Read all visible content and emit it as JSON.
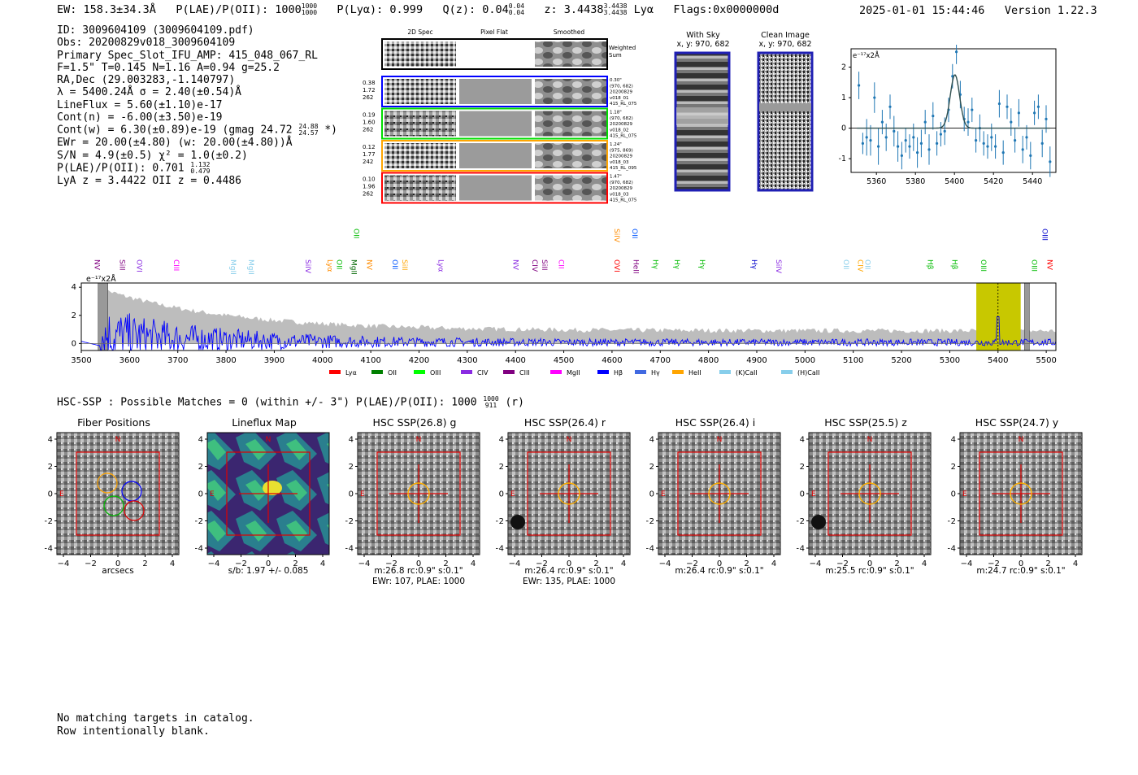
{
  "header": {
    "ew": "EW: 158.3±34.3Å",
    "plae_label": "P(LAE)/P(OII): 1000",
    "plae_hi": "1000",
    "plae_lo": "1000",
    "plya": "P(Lyα): 0.999",
    "qz_label": "Q(z): 0.04",
    "qz_hi": "0.04",
    "qz_lo": "0.04",
    "z_label": "z: 3.4438",
    "z_hi": "3.4438",
    "z_lo": "3.4438",
    "z_line": "Lyα",
    "flags": "Flags:0x0000000d",
    "timestamp": "2025-01-01 15:44:46",
    "version": "Version 1.22.3"
  },
  "info": {
    "id": "ID: 3009604109 (3009604109.pdf)",
    "obs": "Obs: 20200829v018_3009604109",
    "primary": "Primary Spec_Slot_IFU_AMP: 415_048_067_RL",
    "fparams": "F=1.5\"  T=0.145  N=1.16  A=0.94  g=25.2",
    "radec": "RA,Dec (29.003283,-1.140797)",
    "lambda": "λ = 5400.24Å  σ = 2.40(±0.54)Å",
    "lineflux": "LineFlux = 5.60(±1.10)e-17",
    "contn": "Cont(n) = -6.00(±3.50)e-19",
    "contw": "Cont(w) = 6.30(±0.89)e-19 (gmag 24.72",
    "contw_hi": "24.88",
    "contw_lo": "24.57",
    "contw_end": "*)",
    "ewr": "EWr = 20.00(±4.80) (w: 20.00(±4.80))Å",
    "sn": "S/N = 4.9(±0.5)  χ² = 1.0(±0.2)",
    "plae": "P(LAE)/P(OII): 0.701",
    "plae_hi": "1.132",
    "plae_lo": "0.479",
    "lyaz": "LyA z = 3.4422  OII z = 0.4486"
  },
  "cutouts": {
    "col_titles": [
      "2D Spec",
      "Pixel Flat",
      "Smoothed"
    ],
    "weighted_sum": [
      "Weighted",
      "Sum"
    ],
    "rows": [
      {
        "left": [
          "0.38",
          "1.72",
          "262"
        ],
        "right": [
          "0.30\"",
          "(970, 682)",
          "20200829",
          "v018_01",
          "415_RL_075"
        ],
        "color": "#0000ff"
      },
      {
        "left": [
          "0.19",
          "1.60",
          "262"
        ],
        "right": [
          "1.18\"",
          "(970, 682)",
          "20200829",
          "v018_02",
          "415_RL_075"
        ],
        "color": "#00dd00"
      },
      {
        "left": [
          "0.12",
          "1.77",
          "242"
        ],
        "right": [
          "1.24\"",
          "(975, 869)",
          "20200829",
          "v018_03",
          "415_RL_095"
        ],
        "color": "#ffa500"
      },
      {
        "left": [
          "0.10",
          "1.96",
          "262"
        ],
        "right": [
          "1.47\"",
          "(970, 682)",
          "20200829",
          "v018_03",
          "415_RL_075"
        ],
        "color": "#ff0000"
      }
    ]
  },
  "sky_panels": [
    {
      "title": "With Sky",
      "subtitle": "x, y: 970, 682"
    },
    {
      "title": "Clean Image",
      "subtitle": "x, y: 970, 682"
    }
  ],
  "zoom_plot": {
    "unit_label": "e⁻¹⁷x2Å",
    "xticks": [
      "5360",
      "5380",
      "5400",
      "5420",
      "5440"
    ],
    "yticks": [
      "2",
      "1",
      "0",
      "-1"
    ],
    "xlim": [
      5347,
      5452
    ],
    "ylim": [
      -1.45,
      2.6
    ],
    "x": [
      5351,
      5353,
      5355,
      5357,
      5359,
      5361,
      5363,
      5365,
      5367,
      5369,
      5371,
      5373,
      5375,
      5377,
      5379,
      5381,
      5383,
      5385,
      5387,
      5389,
      5391,
      5393,
      5395,
      5397,
      5399,
      5401,
      5403,
      5405,
      5407,
      5409,
      5411,
      5413,
      5415,
      5417,
      5419,
      5421,
      5423,
      5425,
      5427,
      5429,
      5431,
      5433,
      5435,
      5437,
      5439,
      5441,
      5443,
      5445,
      5447,
      5449
    ],
    "y": [
      1.4,
      -0.5,
      -0.3,
      -0.4,
      1.0,
      -0.6,
      0.2,
      -0.3,
      0.7,
      -0.1,
      -0.6,
      -0.9,
      -0.4,
      -0.6,
      -0.3,
      -0.8,
      -0.5,
      0.2,
      -0.7,
      0.4,
      -0.5,
      -0.2,
      -0.1,
      0.6,
      1.7,
      2.5,
      1.1,
      0.3,
      0.2,
      0.6,
      -0.4,
      0.0,
      -0.5,
      -0.6,
      -0.3,
      -0.6,
      0.8,
      -0.8,
      0.7,
      0.2,
      -0.4,
      0.5,
      -0.7,
      -0.3,
      -0.9,
      0.5,
      0.7,
      -0.5,
      0.3,
      -1.1
    ],
    "err": [
      0.45,
      0.35,
      0.6,
      0.5,
      0.5,
      0.6,
      0.4,
      0.45,
      0.4,
      0.5,
      0.5,
      0.45,
      0.4,
      0.4,
      0.45,
      0.5,
      0.45,
      0.4,
      0.5,
      0.45,
      0.4,
      0.4,
      0.45,
      0.4,
      0.4,
      0.4,
      0.45,
      0.4,
      0.45,
      0.4,
      0.4,
      0.45,
      0.4,
      0.4,
      0.45,
      0.4,
      0.45,
      0.4,
      0.4,
      0.45,
      0.4,
      0.45,
      0.45,
      0.4,
      0.45,
      0.4,
      0.4,
      0.45,
      0.45,
      0.5
    ],
    "model_center": 5400.24,
    "model_sigma": 2.4,
    "model_amp": 1.75
  },
  "full_spectrum": {
    "unit_label": "e⁻¹⁷x2Å",
    "xlim": [
      3500,
      5520
    ],
    "ylim": [
      -0.5,
      4.3
    ],
    "xticks": [
      "3500",
      "3600",
      "3700",
      "3800",
      "3900",
      "4000",
      "4100",
      "4200",
      "4300",
      "4400",
      "4500",
      "4600",
      "4700",
      "4800",
      "4900",
      "5000",
      "5100",
      "5200",
      "5300",
      "5400",
      "5500"
    ],
    "yticks": [
      "4",
      "2",
      "0"
    ],
    "highlight_band": [
      5355,
      5447
    ],
    "detection_wave": 5400,
    "hatch_left": [
      3535,
      3555
    ],
    "hatch_right": [
      5455,
      5465
    ],
    "lines_top": [
      {
        "name": "OII",
        "wave": 4060,
        "color": "#00bb00"
      },
      {
        "name": "SiIV",
        "wave": 4600,
        "color": "#ff8c00"
      },
      {
        "name": "OII",
        "wave": 4637,
        "color": "#0055ff"
      },
      {
        "name": "OIII",
        "wave": 5487,
        "color": "#0000cc"
      }
    ],
    "lines_bottom": [
      {
        "name": "NV",
        "wave": 3523,
        "color": "#800080"
      },
      {
        "name": "SiII",
        "wave": 3575,
        "color": "#800080"
      },
      {
        "name": "OVI",
        "wave": 3610,
        "color": "#8a2be2"
      },
      {
        "name": "CIII",
        "wave": 3687,
        "color": "#ff00ff"
      },
      {
        "name": "MgII",
        "wave": 3805,
        "color": "#87ceeb"
      },
      {
        "name": "MgII",
        "wave": 3842,
        "color": "#87ceeb"
      },
      {
        "name": "SiIV",
        "wave": 3960,
        "color": "#8a2be2"
      },
      {
        "name": "Lyα",
        "wave": 4005,
        "color": "#ff8c00"
      },
      {
        "name": "OII",
        "wave": 4025,
        "color": "#00bb00"
      },
      {
        "name": "MgII",
        "wave": 4055,
        "color": "#006600"
      },
      {
        "name": "NV",
        "wave": 4087,
        "color": "#ff8c00"
      },
      {
        "name": "OII",
        "wave": 4140,
        "color": "#0055ff"
      },
      {
        "name": "SiII",
        "wave": 4160,
        "color": "#ffa500"
      },
      {
        "name": "Lyα",
        "wave": 4235,
        "color": "#8a2be2"
      },
      {
        "name": "NV",
        "wave": 4390,
        "color": "#8a2be2"
      },
      {
        "name": "CIV",
        "wave": 4430,
        "color": "#800080"
      },
      {
        "name": "SiII",
        "wave": 4450,
        "color": "#800080"
      },
      {
        "name": "CII",
        "wave": 4485,
        "color": "#ff00ff"
      },
      {
        "name": "OVI",
        "wave": 4600,
        "color": "#ff0000"
      },
      {
        "name": "HeII",
        "wave": 4640,
        "color": "#800080"
      },
      {
        "name": "Hγ",
        "wave": 4680,
        "color": "#00bb00"
      },
      {
        "name": "Hγ",
        "wave": 4725,
        "color": "#00bb00"
      },
      {
        "name": "Hγ",
        "wave": 4777,
        "color": "#00bb00"
      },
      {
        "name": "Hγ",
        "wave": 4885,
        "color": "#0000cc"
      },
      {
        "name": "SiIV",
        "wave": 4935,
        "color": "#8a2be2"
      },
      {
        "name": "OII",
        "wave": 5075,
        "color": "#87ceeb"
      },
      {
        "name": "CIV",
        "wave": 5105,
        "color": "#ffa500"
      },
      {
        "name": "OII",
        "wave": 5120,
        "color": "#87ceeb"
      },
      {
        "name": "Hβ",
        "wave": 5250,
        "color": "#00bb00"
      },
      {
        "name": "Hβ",
        "wave": 5300,
        "color": "#00bb00"
      },
      {
        "name": "OIII",
        "wave": 5360,
        "color": "#00bb00"
      },
      {
        "name": "OIII",
        "wave": 5465,
        "color": "#00bb00"
      },
      {
        "name": "NV",
        "wave": 5497,
        "color": "#ff0000"
      }
    ],
    "legend": [
      {
        "name": "Lyα",
        "color": "#ff0000"
      },
      {
        "name": "OII",
        "color": "#008000"
      },
      {
        "name": "OIII",
        "color": "#00ff00"
      },
      {
        "name": "CIV",
        "color": "#8a2be2"
      },
      {
        "name": "CIII",
        "color": "#800080"
      },
      {
        "name": "MgII",
        "color": "#ff00ff"
      },
      {
        "name": "Hβ",
        "color": "#0000ff"
      },
      {
        "name": "Hγ",
        "color": "#4169e1"
      },
      {
        "name": "HeII",
        "color": "#ffa500"
      },
      {
        "name": "(K)CaII",
        "color": "#87ceeb"
      },
      {
        "name": "(H)CaII",
        "color": "#87ceeb"
      }
    ]
  },
  "hsc": {
    "summary": "HSC-SSP : Possible Matches = 0 (within +/- 3\")  P(LAE)/P(OII): 1000",
    "summary_hi": "1000",
    "summary_lo": "911",
    "summary_end": "(r)",
    "panels": [
      {
        "title": "Fiber Positions",
        "caption1": "arcsecs",
        "caption2": "",
        "kind": "fibers"
      },
      {
        "title": "Lineflux Map",
        "caption1": "s/b: 1.97 +/- 0.085",
        "caption2": "",
        "kind": "lineflux"
      },
      {
        "title": "HSC SSP(26.8) g",
        "caption1": "m:26.8 rc:0.9\"  s:0.1\"",
        "caption2": "EWr: 107, PLAE: 1000",
        "kind": "hsc"
      },
      {
        "title": "HSC SSP(26.4) r",
        "caption1": "m:26.4 rc:0.9\"  s:0.1\"",
        "caption2": "EWr: 135, PLAE: 1000",
        "kind": "hsc"
      },
      {
        "title": "HSC SSP(26.4) i",
        "caption1": "m:26.4 rc:0.9\"  s:0.1\"",
        "caption2": "",
        "kind": "hsc"
      },
      {
        "title": "HSC SSP(25.5) z",
        "caption1": "m:25.5 rc:0.9\"  s:0.1\"",
        "caption2": "",
        "kind": "hsc"
      },
      {
        "title": "HSC SSP(24.7) y",
        "caption1": "m:24.7 rc:0.9\"  s:0.1\"",
        "caption2": "",
        "kind": "hsc"
      }
    ],
    "axis_ticks": [
      "4",
      "2",
      "0",
      "−2",
      "−4"
    ],
    "x_ticks": [
      "−4",
      "−2",
      "0",
      "2",
      "4"
    ],
    "compass_n": "N",
    "compass_e": "E"
  },
  "footer": {
    "line1": "No matching targets in catalog.",
    "line2": "Row intentionally blank."
  },
  "chart_data": [
    {
      "type": "scatter",
      "title": "",
      "xlabel": "",
      "ylabel": "e⁻¹⁷x2Å",
      "xlim": [
        5347,
        5452
      ],
      "ylim": [
        -1.45,
        2.6
      ],
      "x": [
        5351,
        5353,
        5355,
        5357,
        5359,
        5361,
        5363,
        5365,
        5367,
        5369,
        5371,
        5373,
        5375,
        5377,
        5379,
        5381,
        5383,
        5385,
        5387,
        5389,
        5391,
        5393,
        5395,
        5397,
        5399,
        5401,
        5403,
        5405,
        5407,
        5409,
        5411,
        5413,
        5415,
        5417,
        5419,
        5421,
        5423,
        5425,
        5427,
        5429,
        5431,
        5433,
        5435,
        5437,
        5439,
        5441,
        5443,
        5445,
        5447,
        5449
      ],
      "y": [
        1.4,
        -0.5,
        -0.3,
        -0.4,
        1.0,
        -0.6,
        0.2,
        -0.3,
        0.7,
        -0.1,
        -0.6,
        -0.9,
        -0.4,
        -0.6,
        -0.3,
        -0.8,
        -0.5,
        0.2,
        -0.7,
        0.4,
        -0.5,
        -0.2,
        -0.1,
        0.6,
        1.7,
        2.5,
        1.1,
        0.3,
        0.2,
        0.6,
        -0.4,
        0.0,
        -0.5,
        -0.6,
        -0.3,
        -0.6,
        0.8,
        -0.8,
        0.7,
        0.2,
        -0.4,
        0.5,
        -0.7,
        -0.3,
        -0.9,
        0.5,
        0.7,
        -0.5,
        0.3,
        -1.1
      ]
    },
    {
      "type": "line",
      "title": "",
      "xlabel": "",
      "ylabel": "e⁻¹⁷x2Å",
      "xlim": [
        3500,
        5520
      ],
      "ylim": [
        -0.5,
        4.3
      ]
    }
  ]
}
